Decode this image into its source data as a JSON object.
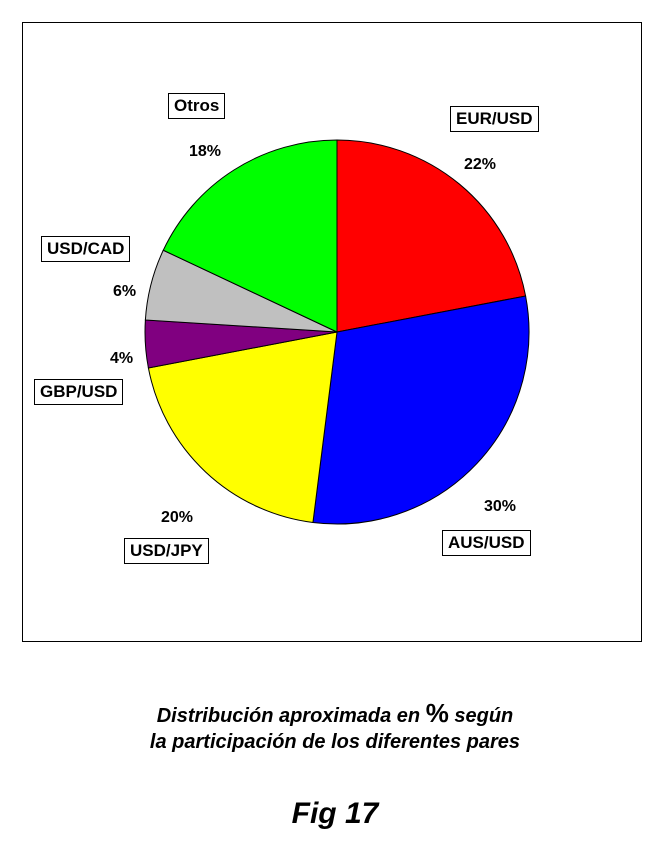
{
  "chart_data": {
    "type": "pie",
    "slices": [
      {
        "label": "EUR/USD",
        "value": 22,
        "value_label": "22%",
        "color": "#ff0000"
      },
      {
        "label": "AUS/USD",
        "value": 30,
        "value_label": "30%",
        "color": "#0000ff"
      },
      {
        "label": "USD/JPY",
        "value": 20,
        "value_label": "20%",
        "color": "#ffff00"
      },
      {
        "label": "GBP/USD",
        "value": 4,
        "value_label": "4%",
        "color": "#800080"
      },
      {
        "label": "USD/CAD",
        "value": 6,
        "value_label": "6%",
        "color": "#c0c0c0"
      },
      {
        "label": "Otros",
        "value": 18,
        "value_label": "18%",
        "color": "#00ff00"
      }
    ],
    "start_angle": "12 o'clock",
    "direction": "clockwise"
  },
  "caption": {
    "line1_before": "Distribución aproximada en ",
    "line1_symbol": "%",
    "line1_after": " según",
    "line2": "la participación de los diferentes pares"
  },
  "figure_label": "Fig 17"
}
